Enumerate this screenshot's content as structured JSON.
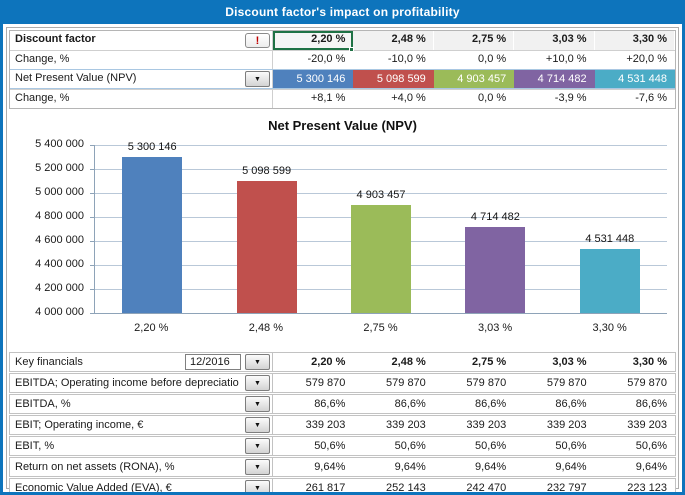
{
  "title": "Discount factor's impact on profitability",
  "icons": {
    "alert": "!",
    "dropdown": "▼"
  },
  "colors": {
    "accent_blue": "#0d74bc",
    "selection_green": "#1f7245",
    "series": [
      "#4F81BD",
      "#C0504D",
      "#9BBB59",
      "#8064A2",
      "#4BACC6"
    ]
  },
  "top_table": {
    "rows": [
      {
        "label": "Discount factor",
        "values": [
          "2,20 %",
          "2,48 %",
          "2,75 %",
          "3,03 %",
          "3,30 %"
        ]
      },
      {
        "label": "Change, %",
        "values": [
          "-20,0 %",
          "-10,0 %",
          "0,0 %",
          "+10,0 %",
          "+20,0 %"
        ]
      },
      {
        "label": "Net Present Value (NPV)",
        "values": [
          "5 300 146",
          "5 098 599",
          "4 903 457",
          "4 714 482",
          "4 531 448"
        ]
      },
      {
        "label": "Change, %",
        "values": [
          "+8,1 %",
          "+4,0 %",
          "0,0 %",
          "-3,9 %",
          "-7,6 %"
        ]
      }
    ]
  },
  "chart_data": {
    "type": "bar",
    "title": "Net Present Value (NPV)",
    "categories": [
      "2,20 %",
      "2,48 %",
      "2,75 %",
      "3,03 %",
      "3,30 %"
    ],
    "values": [
      5300146,
      5098599,
      4903457,
      4714482,
      4531448
    ],
    "labels": [
      "5 300 146",
      "5 098 599",
      "4 903 457",
      "4 714 482",
      "4 531 448"
    ],
    "bar_colors": [
      "#4F81BD",
      "#C0504D",
      "#9BBB59",
      "#8064A2",
      "#4BACC6"
    ],
    "ylim": [
      4000000,
      5400000
    ],
    "ytick_step": 200000,
    "yticks": [
      "5 400 000",
      "5 200 000",
      "5 000 000",
      "4 800 000",
      "4 600 000",
      "4 400 000",
      "4 200 000",
      "4 000 000"
    ],
    "xlabel": "",
    "ylabel": "",
    "grid": true,
    "legend": "none"
  },
  "bottom_table": {
    "header": {
      "label": "Key financials",
      "period": "12/2016",
      "columns": [
        "2,20 %",
        "2,48 %",
        "2,75 %",
        "3,03 %",
        "3,30 %"
      ]
    },
    "rows": [
      {
        "label": "EBITDA; Operating income before depreciatio",
        "values": [
          "579 870",
          "579 870",
          "579 870",
          "579 870",
          "579 870"
        ]
      },
      {
        "label": "EBITDA, %",
        "values": [
          "86,6%",
          "86,6%",
          "86,6%",
          "86,6%",
          "86,6%"
        ]
      },
      {
        "label": "EBIT; Operating income, €",
        "values": [
          "339 203",
          "339 203",
          "339 203",
          "339 203",
          "339 203"
        ]
      },
      {
        "label": "EBIT, %",
        "values": [
          "50,6%",
          "50,6%",
          "50,6%",
          "50,6%",
          "50,6%"
        ]
      },
      {
        "label": "Return on net assets (RONA), %",
        "values": [
          "9,64%",
          "9,64%",
          "9,64%",
          "9,64%",
          "9,64%"
        ]
      },
      {
        "label": "Economic Value Added (EVA), €",
        "values": [
          "261 817",
          "252 143",
          "242 470",
          "232 797",
          "223 123"
        ]
      }
    ]
  }
}
